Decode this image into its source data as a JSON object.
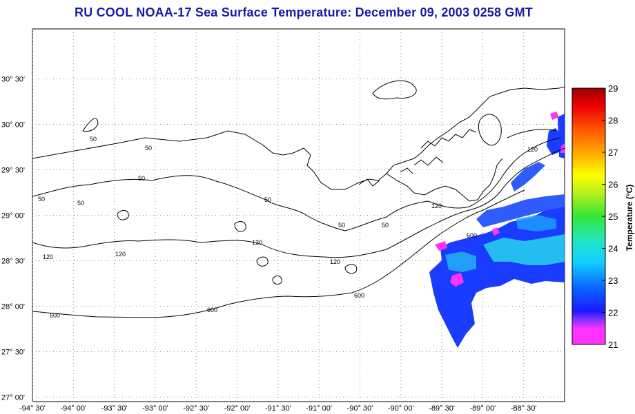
{
  "title": "RU COOL  NOAA-17  Sea Surface Temperature:  December 09, 2003 0258 GMT",
  "map": {
    "lon_ticks": [
      "-94 30'",
      "-94 00'",
      "-93 30'",
      "-93 00'",
      "-92 30'",
      "-92 00'",
      "-91 30'",
      "-91 00'",
      "-90 30'",
      "-90 00'",
      "-89 30'",
      "-89 00'",
      "-88 30'"
    ],
    "lat_ticks": [
      "30 30'",
      "30 00'",
      "29 30'",
      "29 00'",
      "28 30'",
      "28 00'",
      "27 30'",
      "27 00'"
    ],
    "lon_range": [
      -94.5,
      -88.0
    ],
    "lat_range": [
      26.95,
      31.05
    ],
    "grid": "dotted",
    "isobath_labels": [
      "50",
      "50",
      "50",
      "50",
      "50",
      "50",
      "50",
      "50",
      "120",
      "120",
      "120",
      "120",
      "120",
      "120",
      "600",
      "600",
      "600",
      "600"
    ]
  },
  "colorbar": {
    "title": "Temperature (°C)",
    "min": 21,
    "max": 29,
    "ticks": [
      "29",
      "28",
      "27",
      "26",
      "25",
      "24",
      "23",
      "22",
      "21"
    ],
    "colors": [
      "#ff33ff",
      "#7a33ff",
      "#1a1aff",
      "#0a64ff",
      "#11ccff",
      "#22e6c8",
      "#33e633",
      "#aaee22",
      "#ffff00",
      "#ffb000",
      "#ff5500",
      "#ee0000",
      "#990000"
    ]
  },
  "colors": {
    "title": "#1a1aa6",
    "land_contour": "#000000",
    "sst_cold": "#1a3cff",
    "sst_warm": "#28d2f0",
    "sst_coldest": "#ff33ff"
  }
}
